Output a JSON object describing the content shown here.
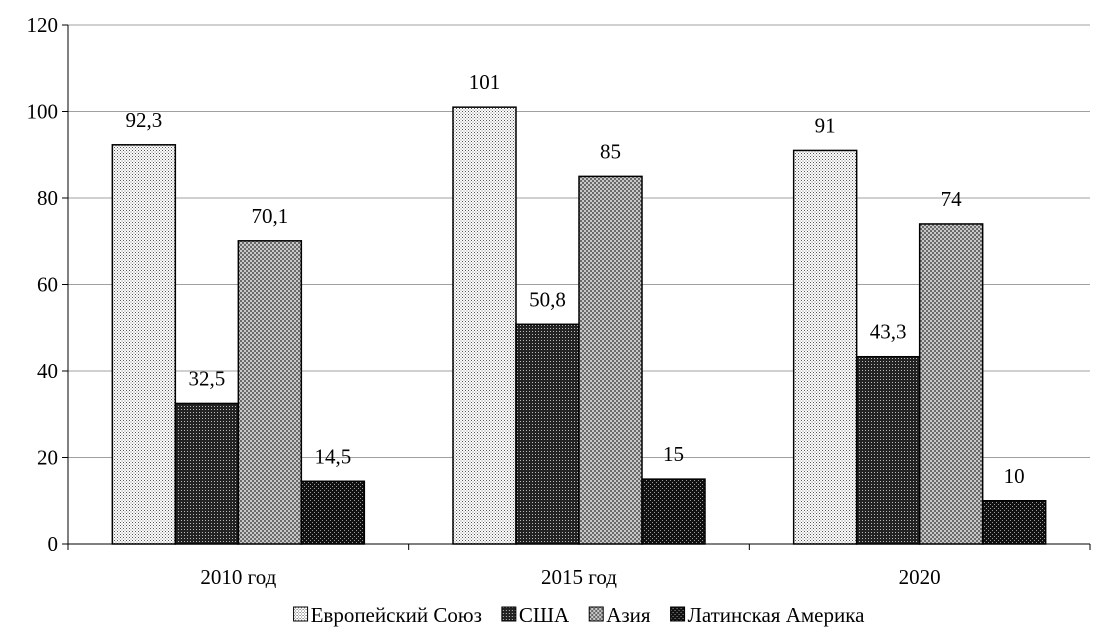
{
  "chart_data": {
    "type": "bar",
    "categories": [
      "2010 год",
      "2015 год",
      "2020"
    ],
    "series": [
      {
        "name": "Европейский Союз",
        "values": [
          92.3,
          101,
          91
        ],
        "labels": [
          "92,3",
          "101",
          "91"
        ],
        "pattern": "light-dots"
      },
      {
        "name": "США",
        "values": [
          32.5,
          50.8,
          43.3
        ],
        "labels": [
          "32,5",
          "50,8",
          "43,3"
        ],
        "pattern": "dark-grid"
      },
      {
        "name": "Азия",
        "values": [
          70.1,
          85,
          74
        ],
        "labels": [
          "70,1",
          "85",
          "74"
        ],
        "pattern": "medium-checker"
      },
      {
        "name": "Латинская Америка",
        "values": [
          14.5,
          15,
          10
        ],
        "labels": [
          "14,5",
          "15",
          "10"
        ],
        "pattern": "dark-checker"
      }
    ],
    "title": "",
    "xlabel": "",
    "ylabel": "",
    "ylim": [
      0,
      120
    ],
    "yticks": [
      0,
      20,
      40,
      60,
      80,
      100,
      120
    ],
    "grid": true,
    "legend": "bottom"
  }
}
